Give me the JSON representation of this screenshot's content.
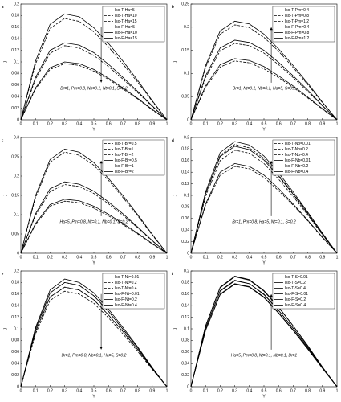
{
  "chart_data": [
    {
      "type": "line",
      "label": "a",
      "xlabel": "Y",
      "ylabel": "J",
      "annotation": "Br=1, Pm=0.8, Nb=0.1, Nt=0.1, S=0.2",
      "arrow": "down",
      "x": [
        0,
        0.1,
        0.2,
        0.3,
        0.4,
        0.5,
        0.6,
        0.7,
        0.8,
        0.9,
        1
      ],
      "xlim": [
        0,
        1
      ],
      "xticks": [
        0,
        0.1,
        0.2,
        0.3,
        0.4,
        0.5,
        0.6,
        0.7,
        0.8,
        0.9,
        1
      ],
      "ylim": [
        0,
        0.2
      ],
      "yticks": [
        0,
        0.02,
        0.04,
        0.06,
        0.08,
        0.1,
        0.12,
        0.14,
        0.16,
        0.18,
        0.2
      ],
      "series": [
        {
          "name": "Iso-T-Ha=5",
          "color": "#000000",
          "style": "dashed",
          "values": [
            0,
            0.096,
            0.158,
            0.175,
            0.17,
            0.152,
            0.126,
            0.096,
            0.065,
            0.032,
            0
          ]
        },
        {
          "name": "Iso-T-Ha=10",
          "color": "#000000",
          "style": "dashed",
          "values": [
            0,
            0.07,
            0.115,
            0.128,
            0.124,
            0.111,
            0.092,
            0.07,
            0.047,
            0.023,
            0
          ]
        },
        {
          "name": "Iso-T-Ha=15",
          "color": "#000000",
          "style": "dashed",
          "values": [
            0,
            0.053,
            0.087,
            0.097,
            0.094,
            0.084,
            0.07,
            0.053,
            0.036,
            0.017,
            0
          ]
        },
        {
          "name": "Iso-F-Ha=5",
          "color": "#000000",
          "style": "solid",
          "values": [
            0,
            0.101,
            0.165,
            0.183,
            0.178,
            0.159,
            0.132,
            0.101,
            0.068,
            0.033,
            0
          ]
        },
        {
          "name": "Iso-F-Ha=10",
          "color": "#000000",
          "style": "solid",
          "values": [
            0,
            0.073,
            0.12,
            0.133,
            0.129,
            0.116,
            0.096,
            0.073,
            0.049,
            0.024,
            0
          ]
        },
        {
          "name": "Iso-F-Ha=15",
          "color": "#000000",
          "style": "solid",
          "values": [
            0,
            0.055,
            0.09,
            0.1,
            0.097,
            0.087,
            0.072,
            0.055,
            0.037,
            0.018,
            0
          ]
        }
      ]
    },
    {
      "type": "line",
      "label": "b",
      "xlabel": "Y",
      "ylabel": "J",
      "annotation": "Br=1, Nt=0.1, Nb=0.1, Ha=5, S=0.2",
      "arrow": "up",
      "x": [
        0,
        0.1,
        0.2,
        0.3,
        0.4,
        0.5,
        0.6,
        0.7,
        0.8,
        0.9,
        1
      ],
      "xlim": [
        0,
        1
      ],
      "xticks": [
        0,
        0.1,
        0.2,
        0.3,
        0.4,
        0.5,
        0.6,
        0.7,
        0.8,
        0.9,
        1
      ],
      "ylim": [
        0,
        0.25
      ],
      "yticks": [
        0,
        0.05,
        0.1,
        0.15,
        0.2,
        0.25
      ],
      "series": [
        {
          "name": "Iso-T-Pm=0.4",
          "color": "#000000",
          "style": "dashed",
          "values": [
            0,
            0.07,
            0.114,
            0.127,
            0.123,
            0.11,
            0.091,
            0.07,
            0.047,
            0.023,
            0
          ]
        },
        {
          "name": "Iso-T-Pm=0.8",
          "color": "#000000",
          "style": "dashed",
          "values": [
            0,
            0.091,
            0.149,
            0.165,
            0.16,
            0.144,
            0.119,
            0.091,
            0.061,
            0.03,
            0
          ]
        },
        {
          "name": "Iso-T-Pm=1.2",
          "color": "#000000",
          "style": "dashed",
          "values": [
            0,
            0.113,
            0.185,
            0.205,
            0.199,
            0.178,
            0.148,
            0.113,
            0.076,
            0.037,
            0
          ]
        },
        {
          "name": "Iso-F-Pm=0.4",
          "color": "#000000",
          "style": "solid",
          "values": [
            0,
            0.073,
            0.119,
            0.132,
            0.128,
            0.115,
            0.095,
            0.073,
            0.049,
            0.024,
            0
          ]
        },
        {
          "name": "Iso-F-Pm=0.8",
          "color": "#000000",
          "style": "solid",
          "values": [
            0,
            0.095,
            0.155,
            0.172,
            0.167,
            0.15,
            0.124,
            0.095,
            0.064,
            0.031,
            0
          ]
        },
        {
          "name": "Iso-F-Pm=1.2",
          "color": "#000000",
          "style": "solid",
          "values": [
            0,
            0.117,
            0.192,
            0.213,
            0.207,
            0.185,
            0.153,
            0.117,
            0.079,
            0.038,
            0
          ]
        }
      ]
    },
    {
      "type": "line",
      "label": "c",
      "xlabel": "Y",
      "ylabel": "J",
      "annotation": "Ha=5, Pm=0.8, Nt=0.1, Nb=0.1, S=0.2",
      "arrow": "up",
      "x": [
        0,
        0.1,
        0.2,
        0.3,
        0.4,
        0.5,
        0.6,
        0.7,
        0.8,
        0.9,
        1
      ],
      "xlim": [
        0,
        1
      ],
      "xticks": [
        0,
        0.1,
        0.2,
        0.3,
        0.4,
        0.5,
        0.6,
        0.7,
        0.8,
        0.9,
        1
      ],
      "ylim": [
        0,
        0.3
      ],
      "yticks": [
        0,
        0.05,
        0.1,
        0.15,
        0.2,
        0.25,
        0.3
      ],
      "series": [
        {
          "name": "Iso-T-Br=0.5",
          "color": "#000000",
          "style": "dashed",
          "values": [
            0,
            0.074,
            0.122,
            0.135,
            0.131,
            0.117,
            0.097,
            0.074,
            0.05,
            0.024,
            0
          ]
        },
        {
          "name": "Iso-T-Br=1",
          "color": "#000000",
          "style": "dashed",
          "values": [
            0,
            0.098,
            0.16,
            0.178,
            0.173,
            0.155,
            0.128,
            0.098,
            0.066,
            0.032,
            0
          ]
        },
        {
          "name": "Iso-T-Br=2",
          "color": "#000000",
          "style": "dashed",
          "values": [
            0,
            0.144,
            0.236,
            0.262,
            0.254,
            0.228,
            0.189,
            0.144,
            0.097,
            0.047,
            0
          ]
        },
        {
          "name": "Iso-F-Br=0.5",
          "color": "#000000",
          "style": "solid",
          "values": [
            0,
            0.077,
            0.126,
            0.14,
            0.136,
            0.122,
            0.101,
            0.077,
            0.052,
            0.025,
            0
          ]
        },
        {
          "name": "Iso-F-Br=1",
          "color": "#000000",
          "style": "solid",
          "values": [
            0,
            0.102,
            0.167,
            0.185,
            0.179,
            0.161,
            0.133,
            0.102,
            0.068,
            0.033,
            0
          ]
        },
        {
          "name": "Iso-F-Br=2",
          "color": "#000000",
          "style": "solid",
          "values": [
            0,
            0.149,
            0.243,
            0.27,
            0.262,
            0.235,
            0.194,
            0.149,
            0.1,
            0.049,
            0
          ]
        }
      ]
    },
    {
      "type": "line",
      "label": "d",
      "xlabel": "Y",
      "ylabel": "J",
      "annotation": "Br=1, Pm=0.8, Ha=5, Nt=0.1, S=0.2",
      "arrow": "up",
      "x": [
        0,
        0.1,
        0.2,
        0.3,
        0.4,
        0.5,
        0.6,
        0.7,
        0.8,
        0.9,
        1
      ],
      "xlim": [
        0,
        1
      ],
      "xticks": [
        0,
        0.1,
        0.2,
        0.3,
        0.4,
        0.5,
        0.6,
        0.7,
        0.8,
        0.9,
        1
      ],
      "ylim": [
        0,
        0.2
      ],
      "yticks": [
        0,
        0.02,
        0.04,
        0.06,
        0.08,
        0.1,
        0.12,
        0.14,
        0.16,
        0.18,
        0.2
      ],
      "series": [
        {
          "name": "Iso-T-Nb=0.01",
          "color": "#000000",
          "style": "dashed",
          "values": [
            0,
            0.083,
            0.135,
            0.15,
            0.146,
            0.131,
            0.108,
            0.083,
            0.056,
            0.027,
            0
          ]
        },
        {
          "name": "Iso-T-Nb=0.2",
          "color": "#000000",
          "style": "dashed",
          "values": [
            0,
            0.098,
            0.16,
            0.178,
            0.173,
            0.155,
            0.128,
            0.098,
            0.066,
            0.032,
            0
          ]
        },
        {
          "name": "Iso-T-Nb=0.4",
          "color": "#000000",
          "style": "dashed",
          "values": [
            0,
            0.103,
            0.169,
            0.188,
            0.182,
            0.164,
            0.135,
            0.103,
            0.07,
            0.034,
            0
          ]
        },
        {
          "name": "Iso-F-Nb=0.01",
          "color": "#000000",
          "style": "solid",
          "values": [
            0,
            0.085,
            0.14,
            0.155,
            0.15,
            0.135,
            0.112,
            0.085,
            0.057,
            0.028,
            0
          ]
        },
        {
          "name": "Iso-F-Nb=0.2",
          "color": "#000000",
          "style": "solid",
          "values": [
            0,
            0.102,
            0.167,
            0.185,
            0.179,
            0.161,
            0.133,
            0.102,
            0.068,
            0.033,
            0
          ]
        },
        {
          "name": "Iso-F-Nb=0.4",
          "color": "#000000",
          "style": "solid",
          "values": [
            0,
            0.106,
            0.174,
            0.193,
            0.187,
            0.168,
            0.139,
            0.106,
            0.071,
            0.035,
            0
          ]
        }
      ]
    },
    {
      "type": "line",
      "label": "e",
      "xlabel": "Y",
      "ylabel": "J",
      "annotation": "Br=1, Pm=0.8, Nb=0.1, Ha=5, S=0.2",
      "arrow": "down",
      "x": [
        0,
        0.1,
        0.2,
        0.3,
        0.4,
        0.5,
        0.6,
        0.7,
        0.8,
        0.9,
        1
      ],
      "xlim": [
        0,
        1
      ],
      "xticks": [
        0,
        0.1,
        0.2,
        0.3,
        0.4,
        0.5,
        0.6,
        0.7,
        0.8,
        0.9,
        1
      ],
      "ylim": [
        0,
        0.2
      ],
      "yticks": [
        0,
        0.02,
        0.04,
        0.06,
        0.08,
        0.1,
        0.12,
        0.14,
        0.16,
        0.18,
        0.2
      ],
      "series": [
        {
          "name": "Iso-T-Nt=0.01",
          "color": "#000000",
          "style": "dashed",
          "values": [
            0,
            0.099,
            0.162,
            0.18,
            0.175,
            0.157,
            0.13,
            0.099,
            0.067,
            0.032,
            0
          ]
        },
        {
          "name": "Iso-T-Nt=0.2",
          "color": "#000000",
          "style": "dashed",
          "values": [
            0,
            0.095,
            0.155,
            0.172,
            0.167,
            0.15,
            0.124,
            0.095,
            0.064,
            0.031,
            0
          ]
        },
        {
          "name": "Iso-T-Nt=0.4",
          "color": "#000000",
          "style": "dashed",
          "values": [
            0,
            0.091,
            0.149,
            0.165,
            0.16,
            0.144,
            0.119,
            0.091,
            0.061,
            0.03,
            0
          ]
        },
        {
          "name": "Iso-F-Nt=0.01",
          "color": "#000000",
          "style": "solid",
          "values": [
            0,
            0.102,
            0.167,
            0.186,
            0.18,
            0.162,
            0.134,
            0.102,
            0.069,
            0.033,
            0
          ]
        },
        {
          "name": "Iso-F-Nt=0.2",
          "color": "#000000",
          "style": "solid",
          "values": [
            0,
            0.099,
            0.162,
            0.18,
            0.175,
            0.157,
            0.13,
            0.099,
            0.067,
            0.032,
            0
          ]
        },
        {
          "name": "Iso-F-Nt=0.4",
          "color": "#000000",
          "style": "solid",
          "values": [
            0,
            0.095,
            0.155,
            0.172,
            0.167,
            0.15,
            0.124,
            0.095,
            0.064,
            0.031,
            0
          ]
        }
      ]
    },
    {
      "type": "line",
      "label": "f",
      "xlabel": "Y",
      "ylabel": "J",
      "annotation": "Ha=5, Pm=0.8, Nt=0.1, Nb=0.1, Br=1",
      "arrow": "up",
      "x": [
        0,
        0.1,
        0.2,
        0.3,
        0.4,
        0.5,
        0.6,
        0.7,
        0.8,
        0.9,
        1
      ],
      "xlim": [
        0,
        1
      ],
      "xticks": [
        0,
        0.1,
        0.2,
        0.3,
        0.4,
        0.5,
        0.6,
        0.7,
        0.8,
        0.9,
        1
      ],
      "ylim": [
        0,
        0.2
      ],
      "yticks": [
        0,
        0.02,
        0.04,
        0.06,
        0.08,
        0.1,
        0.12,
        0.14,
        0.16,
        0.18,
        0.2
      ],
      "series": [
        {
          "name": "Iso-T-S=0.01",
          "color": "#000000",
          "style": "solid",
          "values": [
            0,
            0.097,
            0.159,
            0.177,
            0.172,
            0.154,
            0.127,
            0.097,
            0.065,
            0.032,
            0
          ]
        },
        {
          "name": "Iso-T-S=0.2",
          "color": "#000000",
          "style": "solid",
          "values": [
            0,
            0.101,
            0.165,
            0.183,
            0.178,
            0.159,
            0.132,
            0.101,
            0.068,
            0.033,
            0
          ]
        },
        {
          "name": "Iso-T-S=0.4",
          "color": "#000000",
          "style": "solid",
          "values": [
            0,
            0.105,
            0.171,
            0.19,
            0.184,
            0.165,
            0.137,
            0.105,
            0.07,
            0.034,
            0
          ]
        },
        {
          "name": "Iso-F-S=0.01",
          "color": "#000000",
          "style": "solid",
          "values": [
            0,
            0.098,
            0.16,
            0.178,
            0.173,
            0.155,
            0.128,
            0.098,
            0.066,
            0.032,
            0
          ]
        },
        {
          "name": "Iso-F-S=0.2",
          "color": "#000000",
          "style": "solid",
          "values": [
            0,
            0.101,
            0.166,
            0.184,
            0.178,
            0.16,
            0.132,
            0.101,
            0.068,
            0.033,
            0
          ]
        },
        {
          "name": "Iso-F-S=0.4",
          "color": "#000000",
          "style": "solid",
          "values": [
            0,
            0.105,
            0.172,
            0.191,
            0.185,
            0.166,
            0.138,
            0.105,
            0.071,
            0.034,
            0
          ]
        }
      ]
    }
  ]
}
